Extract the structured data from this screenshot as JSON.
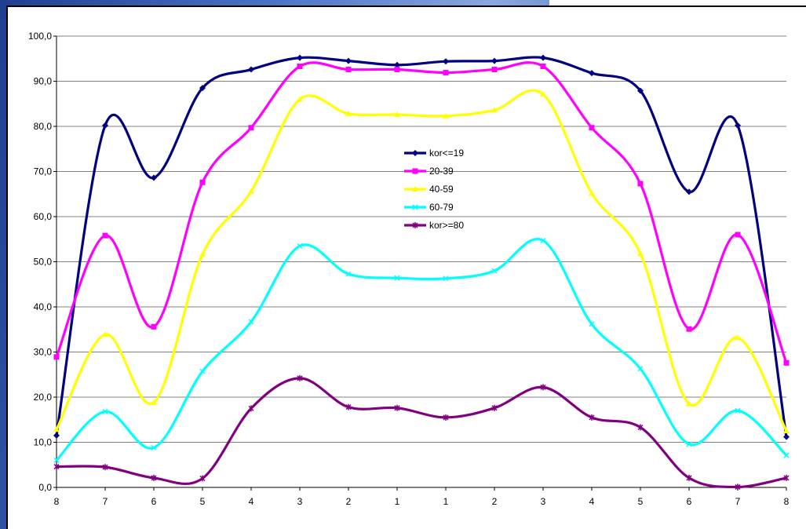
{
  "chart_data": {
    "type": "line",
    "title": "",
    "xlabel": "",
    "ylabel": "",
    "categories": [
      "8",
      "7",
      "6",
      "5",
      "4",
      "3",
      "2",
      "1",
      "1",
      "2",
      "3",
      "4",
      "5",
      "6",
      "7",
      "8"
    ],
    "ylim": [
      0,
      100
    ],
    "yticks": [
      "0,0",
      "10,0",
      "20,0",
      "30,0",
      "40,0",
      "50,0",
      "60,0",
      "70,0",
      "80,0",
      "90,0",
      "100,0"
    ],
    "grid": true,
    "legend_position": "center",
    "series": [
      {
        "name": "kor<=19",
        "color": "#000080",
        "marker": "diamond",
        "values": [
          11.5,
          80.2,
          68.6,
          88.5,
          92.6,
          95.2,
          94.5,
          93.6,
          94.4,
          94.5,
          95.2,
          91.8,
          87.9,
          65.5,
          80.2,
          11.2
        ]
      },
      {
        "name": "20-39",
        "color": "#ff00ff",
        "marker": "square",
        "values": [
          28.9,
          55.8,
          35.6,
          67.6,
          79.7,
          93.3,
          92.6,
          92.6,
          91.9,
          92.6,
          93.3,
          79.7,
          67.3,
          35.1,
          56.0,
          27.6
        ]
      },
      {
        "name": "40-59",
        "color": "#ffff00",
        "marker": "triangle",
        "values": [
          12.8,
          33.9,
          18.8,
          51.6,
          65.6,
          86.0,
          82.8,
          82.6,
          82.3,
          83.6,
          87.1,
          65.2,
          51.8,
          18.5,
          33.2,
          12.5
        ]
      },
      {
        "name": "60-79",
        "color": "#00ffff",
        "marker": "x",
        "values": [
          6.0,
          16.8,
          8.8,
          25.7,
          36.7,
          53.5,
          47.3,
          46.4,
          46.3,
          48.0,
          54.7,
          36.2,
          26.3,
          9.6,
          17.0,
          7.1
        ]
      },
      {
        "name": "kor>=80",
        "color": "#800080",
        "marker": "star",
        "values": [
          4.6,
          4.5,
          2.1,
          2.0,
          17.5,
          24.2,
          17.8,
          17.6,
          15.5,
          17.6,
          22.2,
          15.5,
          13.3,
          2.1,
          0.1,
          2.1
        ]
      }
    ]
  }
}
